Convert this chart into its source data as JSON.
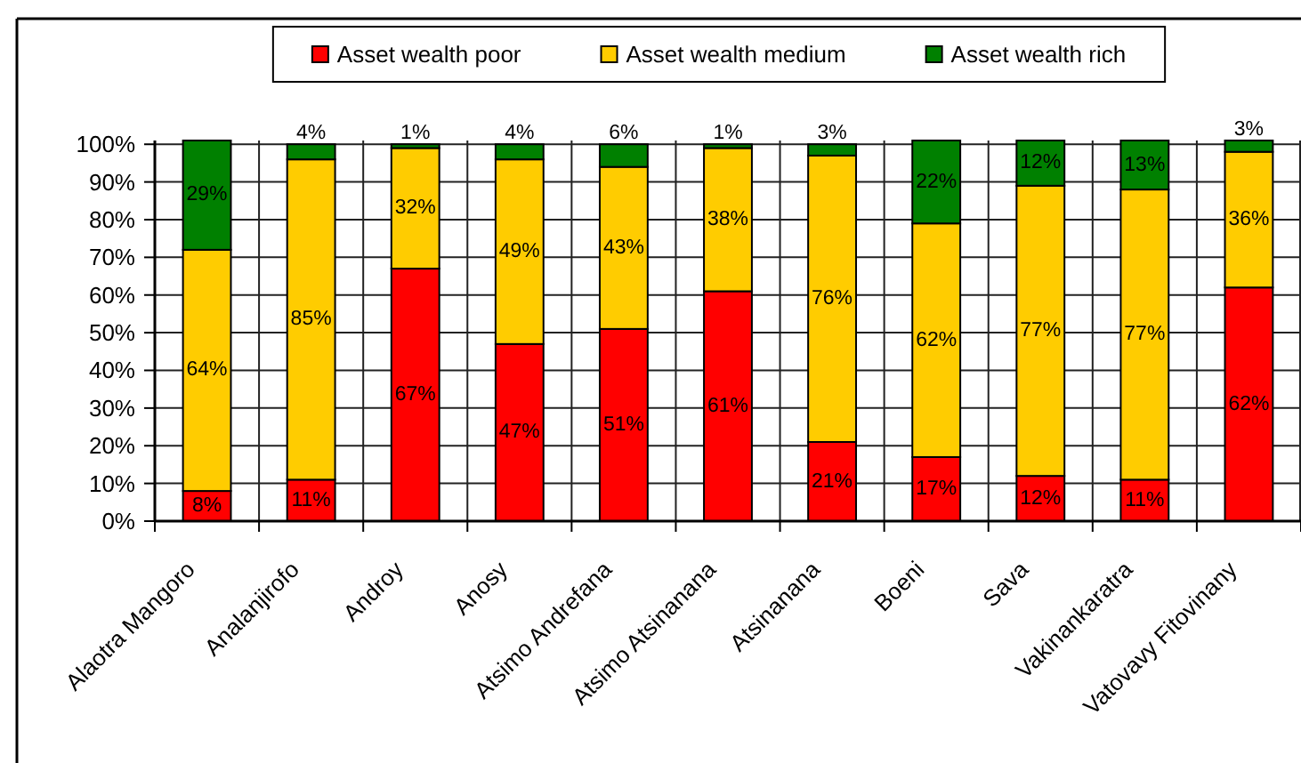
{
  "chart_data": {
    "type": "bar",
    "stacked": true,
    "categories": [
      "Alaotra Mangoro",
      "Analanjirofo",
      "Androy",
      "Anosy",
      "Atsimo Andrefana",
      "Atsimo Atsinanana",
      "Atsinanana",
      "Boeni",
      "Sava",
      "Vakinankaratra",
      "Vatovavy Fitovinany"
    ],
    "series": [
      {
        "name": "Asset wealth poor",
        "color": "#ff0000",
        "values": [
          8,
          11,
          67,
          47,
          51,
          61,
          21,
          17,
          12,
          11,
          62
        ],
        "value_labels": [
          "8%",
          "11%",
          "67%",
          "47%",
          "51%",
          "61%",
          "21%",
          "17%",
          "12%",
          "11%",
          "62%"
        ]
      },
      {
        "name": "Asset wealth medium",
        "color": "#ffcc00",
        "values": [
          64,
          85,
          32,
          49,
          43,
          38,
          76,
          62,
          77,
          77,
          36
        ],
        "value_labels": [
          "64%",
          "85%",
          "32%",
          "49%",
          "43%",
          "38%",
          "76%",
          "62%",
          "77%",
          "77%",
          "36%"
        ]
      },
      {
        "name": "Asset wealth rich",
        "color": "#008000",
        "values": [
          29,
          4,
          1,
          4,
          6,
          1,
          3,
          22,
          12,
          13,
          3
        ],
        "value_labels": [
          "29%",
          "4%",
          "1%",
          "4%",
          "6%",
          "1%",
          "3%",
          "22%",
          "12%",
          "13%",
          "3%"
        ]
      }
    ],
    "ylim": [
      0,
      101
    ],
    "yticks": [
      {
        "value": 0,
        "label": "0%"
      },
      {
        "value": 10,
        "label": "10%"
      },
      {
        "value": 20,
        "label": "20%"
      },
      {
        "value": 30,
        "label": "30%"
      },
      {
        "value": 40,
        "label": "40%"
      },
      {
        "value": 50,
        "label": "50%"
      },
      {
        "value": 60,
        "label": "60%"
      },
      {
        "value": 70,
        "label": "70%"
      },
      {
        "value": 80,
        "label": "80%"
      },
      {
        "value": 90,
        "label": "90%"
      },
      {
        "value": 100,
        "label": "100%"
      }
    ],
    "grid": true,
    "legend": "top"
  }
}
